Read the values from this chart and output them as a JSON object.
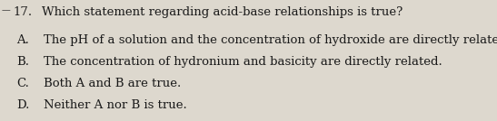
{
  "background_color": "#ddd8ce",
  "question_number": "17.",
  "question_text": "Which statement regarding acid-base relationships is true?",
  "dash": "—",
  "options": [
    {
      "label": "A.",
      "text": "The pH of a solution and the concentration of hydroxide are directly related."
    },
    {
      "label": "B.",
      "text": "The concentration of hydronium and basicity are directly related."
    },
    {
      "label": "C.",
      "text": "Both A and B are true."
    },
    {
      "label": "D.",
      "text": "Neither A nor B is true."
    }
  ],
  "question_fontsize": 9.5,
  "option_fontsize": 9.5,
  "text_color": "#1a1a1a",
  "font_family": "serif",
  "fig_width": 5.47,
  "fig_height": 1.34,
  "dpi": 100
}
